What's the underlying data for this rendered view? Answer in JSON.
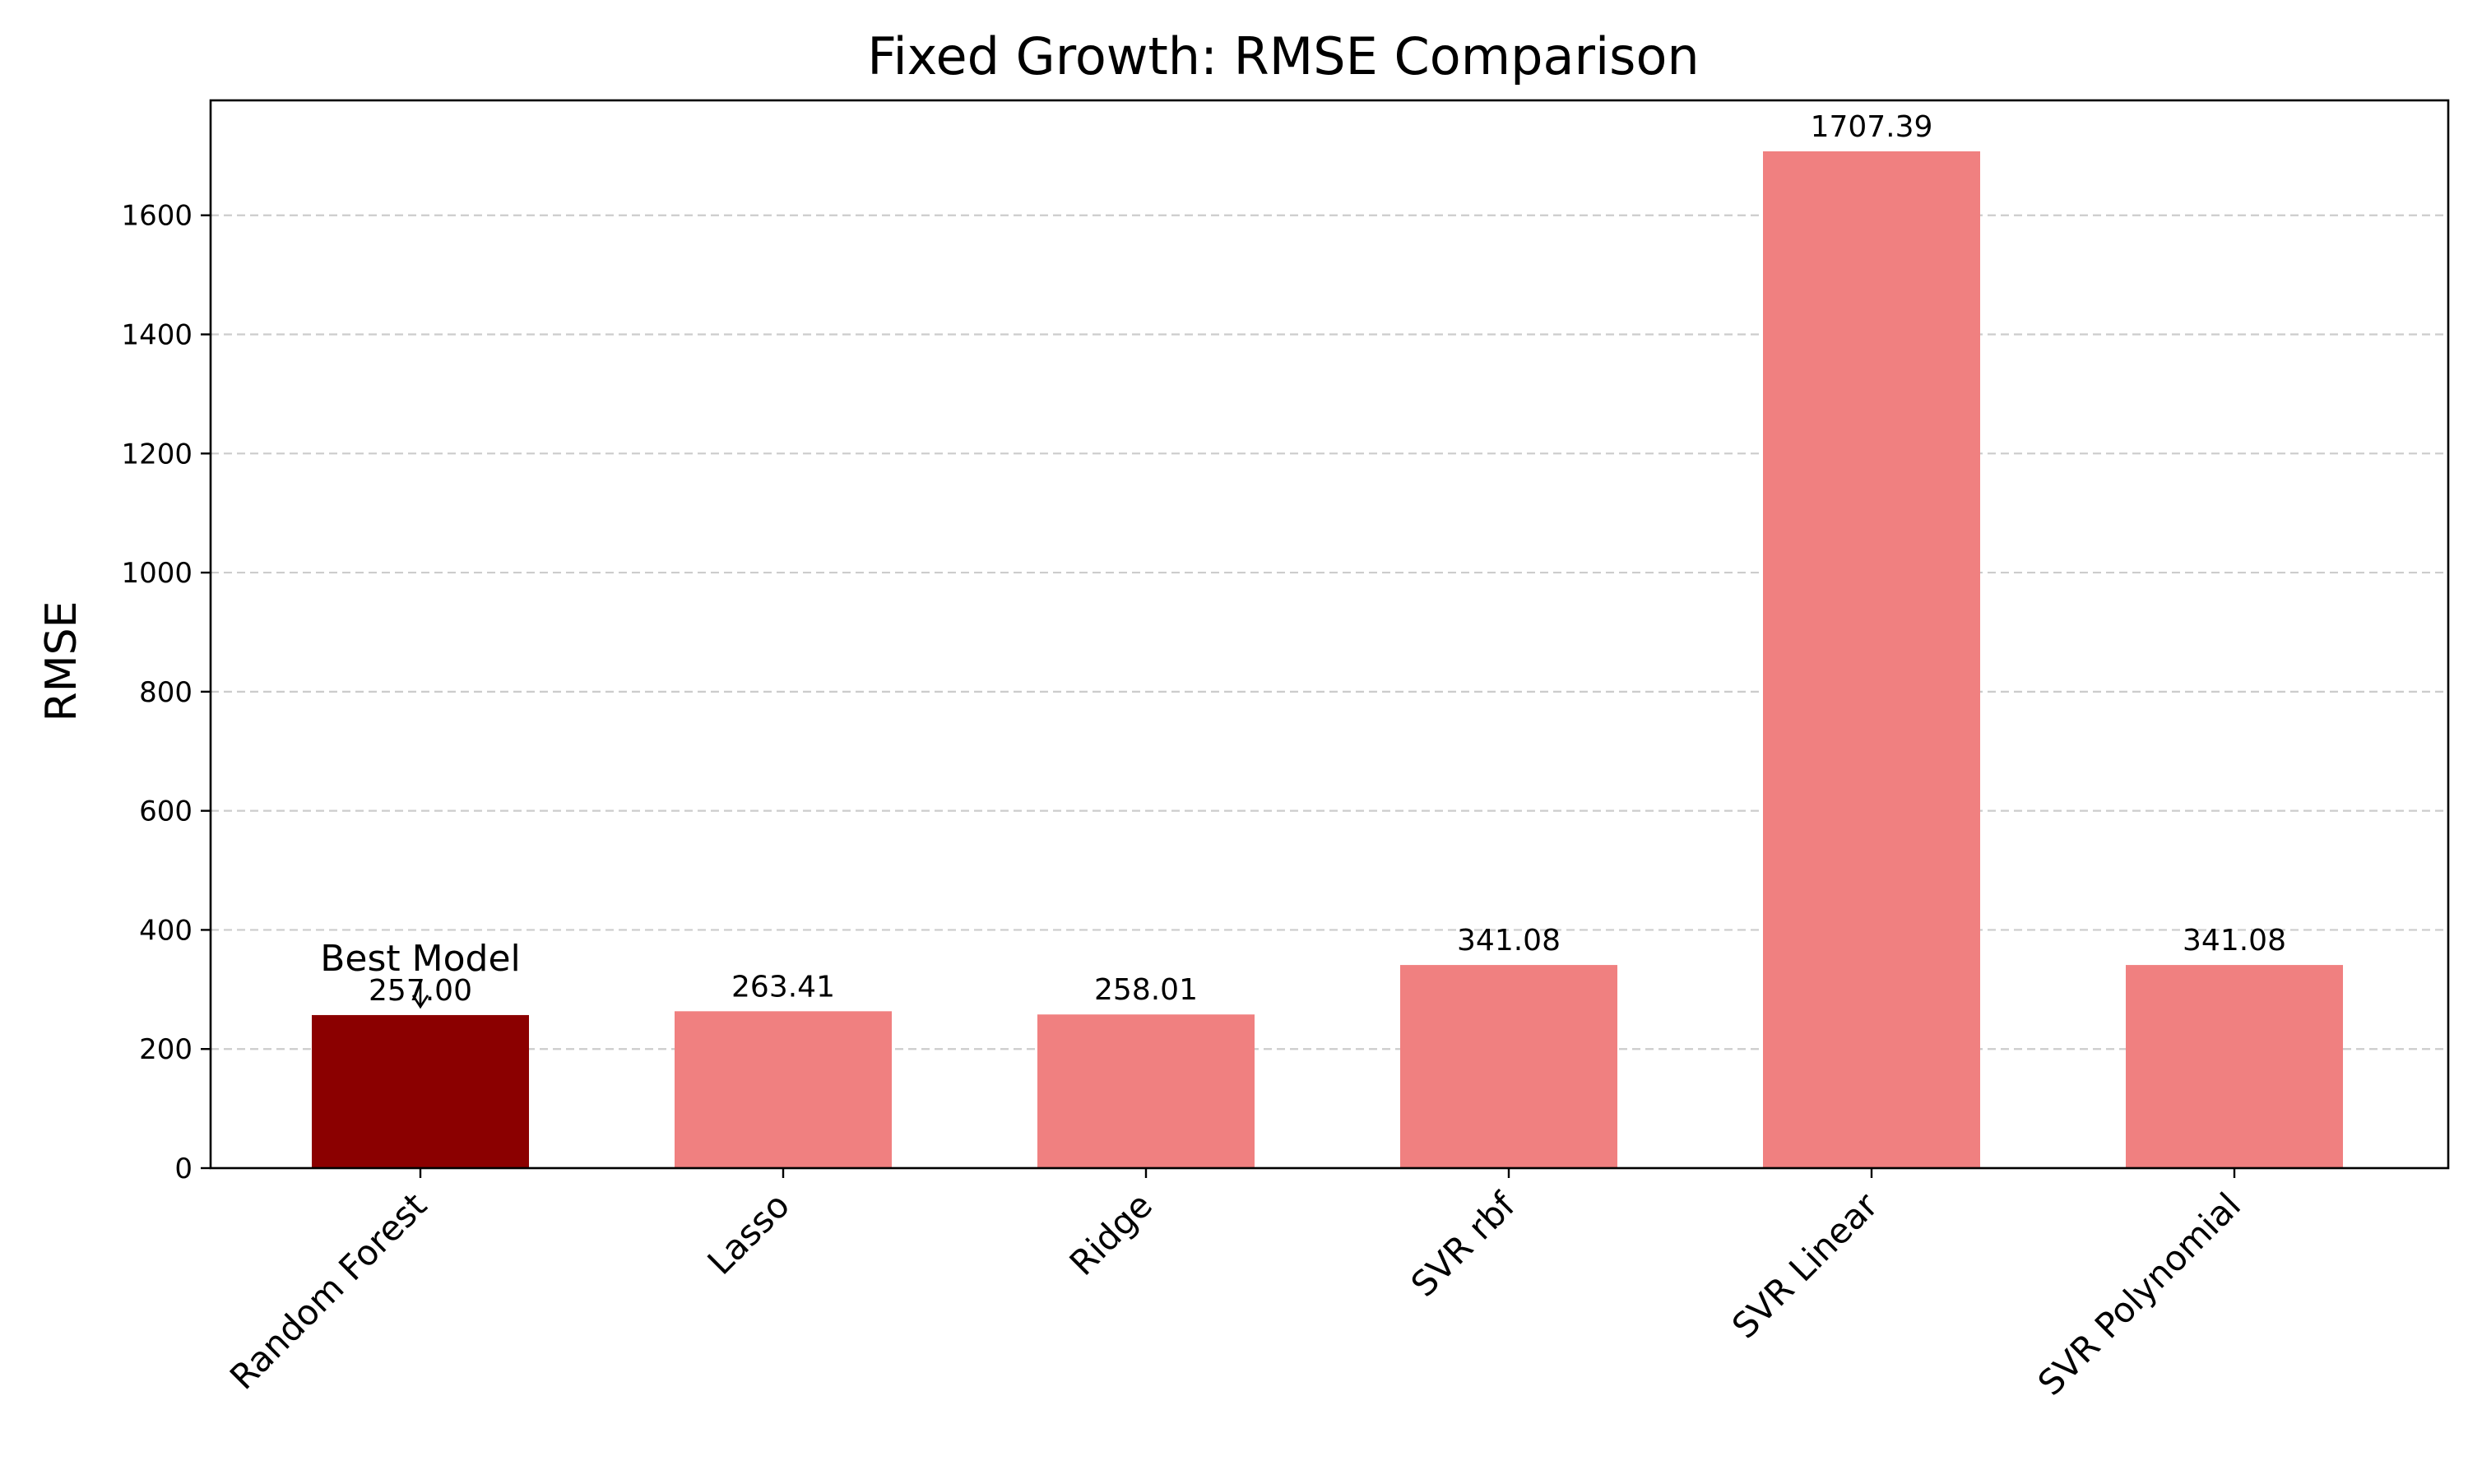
{
  "chart_data": {
    "type": "bar",
    "title": "Fixed Growth: RMSE Comparison",
    "xlabel": "",
    "ylabel": "RMSE",
    "categories": [
      "Random Forest",
      "Lasso",
      "Ridge",
      "SVR rbf",
      "SVR Linear",
      "SVR Polynomial"
    ],
    "values": [
      257.0,
      263.41,
      258.01,
      341.08,
      1707.39,
      341.08
    ],
    "value_labels": [
      "257.00",
      "263.41",
      "258.01",
      "341.08",
      "1707.39",
      "341.08"
    ],
    "ylim": [
      0,
      1793
    ],
    "yticks": [
      0,
      200,
      400,
      600,
      800,
      1000,
      1200,
      1400,
      1600
    ],
    "grid": "y, dashed",
    "colors": {
      "best": "#8b0000",
      "default": "#f08080",
      "grid": "#cccccc"
    },
    "highlight_index": 0,
    "annotation": {
      "text": "Best Model",
      "target_category": "Random Forest"
    }
  }
}
